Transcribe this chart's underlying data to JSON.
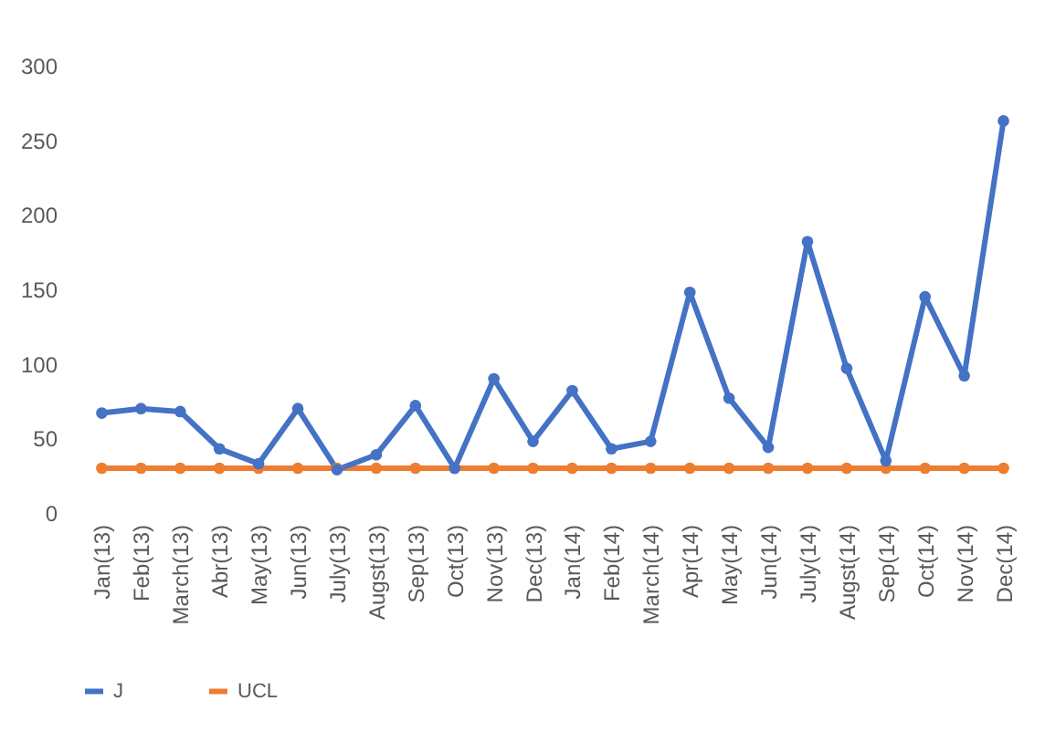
{
  "chart_data": {
    "type": "line",
    "categories": [
      "Jan(13)",
      "Feb(13)",
      "March(13)",
      "Abr(13)",
      "May(13)",
      "Jun(13)",
      "July(13)",
      "Augst(13)",
      "Sep(13)",
      "Oct(13)",
      "Nov(13)",
      "Dec(13)",
      "Jan(14)",
      "Feb(14)",
      "March(14)",
      "Apr(14)",
      "May(14)",
      "Jun(14)",
      "July(14)",
      "Augst(14)",
      "Sep(14)",
      "Oct(14)",
      "Nov(14)",
      "Dec(14)"
    ],
    "series": [
      {
        "name": "J",
        "color": "#4472c4",
        "values": [
          67,
          70,
          68,
          43,
          33,
          70,
          29,
          39,
          72,
          30,
          90,
          48,
          82,
          43,
          48,
          148,
          77,
          44,
          182,
          97,
          35,
          145,
          92,
          263
        ]
      },
      {
        "name": "UCL",
        "color": "#ed7d31",
        "values": [
          30,
          30,
          30,
          30,
          30,
          30,
          30,
          30,
          30,
          30,
          30,
          30,
          30,
          30,
          30,
          30,
          30,
          30,
          30,
          30,
          30,
          30,
          30,
          30
        ]
      }
    ],
    "ylim": [
      0,
      300
    ],
    "yticks": [
      0,
      50,
      100,
      150,
      200,
      250,
      300
    ],
    "grid": false,
    "legend": "bottom",
    "marker": "circle",
    "line_style": "solid"
  }
}
